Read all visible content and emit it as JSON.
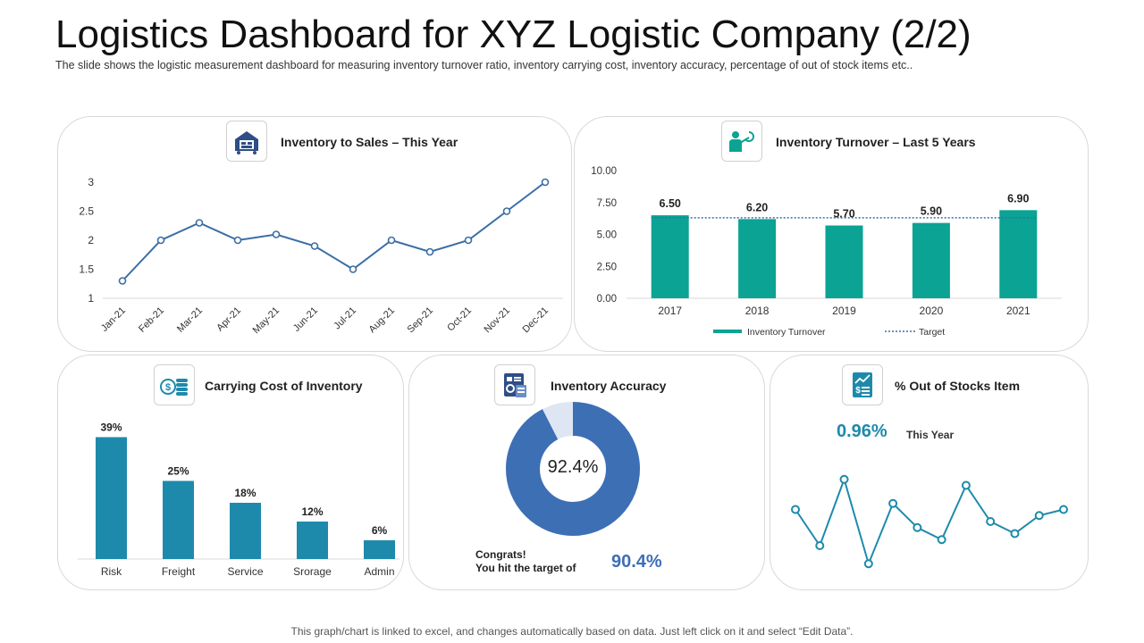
{
  "header": {
    "title": "Logistics Dashboard for XYZ Logistic Company (2/2)",
    "subtitle": "The slide shows the logistic measurement dashboard for measuring inventory turnover ratio, inventory carrying cost, inventory accuracy, percentage of out of stock items etc.."
  },
  "footer": {
    "note": "This graph/chart is linked to excel, and changes automatically based on data. Just left click on it and select “Edit Data”."
  },
  "colors": {
    "line_blue": "#3a6ea5",
    "teal": "#0aa394",
    "bar_blue": "#1e8aab",
    "donut_blue": "#3d6fb5",
    "donut_light": "#dde6f2",
    "accent_blue": "#1e8aab"
  },
  "panels": {
    "inventory_sales": {
      "title": "Inventory to Sales – This Year",
      "icon": "warehouse-icon"
    },
    "turnover": {
      "title": "Inventory Turnover – Last 5 Years",
      "icon": "presenter-icon"
    },
    "carrying_cost": {
      "title": "Carrying  Cost of Inventory",
      "icon": "money-icon"
    },
    "accuracy": {
      "title": "Inventory  Accuracy",
      "icon": "document-check-icon",
      "center_label": "92.4%",
      "congrats_line1": "Congrats!",
      "congrats_line2": "You  hit the target of",
      "target_value": "90.4%"
    },
    "out_of_stock": {
      "title": "% Out of Stocks Item",
      "icon": "report-chart-icon",
      "value": "0.96%",
      "value_label": "This Year"
    }
  },
  "chart_data": [
    {
      "id": "inventory_sales",
      "type": "line",
      "title": "Inventory to Sales – This Year",
      "categories": [
        "Jan-21",
        "Feb-21",
        "Mar-21",
        "Apr-21",
        "May-21",
        "Jun-21",
        "Jul-21",
        "Aug-21",
        "Sep-21",
        "Oct-21",
        "Nov-21",
        "Dec-21"
      ],
      "values": [
        1.3,
        2.0,
        2.3,
        2.0,
        2.1,
        1.9,
        1.5,
        2.0,
        1.8,
        2.0,
        2.5,
        3.0
      ],
      "ylim": [
        1,
        3
      ],
      "yticks": [
        "1",
        "1.5",
        "2",
        "2.5",
        "3"
      ]
    },
    {
      "id": "turnover",
      "type": "bar",
      "title": "Inventory Turnover – Last 5 Years",
      "categories": [
        "2017",
        "2018",
        "2019",
        "2020",
        "2021"
      ],
      "series": [
        {
          "name": "Inventory Turnover",
          "values": [
            6.5,
            6.2,
            5.7,
            5.9,
            6.9
          ]
        },
        {
          "name": "Target",
          "values": [
            6.3,
            6.3,
            6.3,
            6.3,
            6.3
          ]
        }
      ],
      "value_labels": [
        "6.50",
        "6.20",
        "5.70",
        "5.90",
        "6.90"
      ],
      "ylim": [
        0,
        10
      ],
      "yticks": [
        "0.00",
        "2.50",
        "5.00",
        "7.50",
        "10.00"
      ],
      "legend": [
        "Inventory Turnover",
        "Target"
      ]
    },
    {
      "id": "carrying_cost",
      "type": "bar",
      "title": "Carrying  Cost of Inventory",
      "categories": [
        "Risk",
        "Freight",
        "Service",
        "Srorage",
        "Admin"
      ],
      "values": [
        39,
        25,
        18,
        12,
        6
      ],
      "value_labels": [
        "39%",
        "25%",
        "18%",
        "12%",
        "6%"
      ],
      "ylim": [
        0,
        40
      ]
    },
    {
      "id": "accuracy",
      "type": "pie",
      "title": "Inventory  Accuracy",
      "values": [
        92.4,
        7.6
      ]
    },
    {
      "id": "out_of_stock",
      "type": "line",
      "title": "% Out of Stocks Item",
      "values": [
        0.5,
        0.2,
        0.75,
        0.05,
        0.55,
        0.35,
        0.25,
        0.7,
        0.4,
        0.3,
        0.45,
        0.5
      ],
      "ylim": [
        0,
        0.8
      ]
    }
  ]
}
